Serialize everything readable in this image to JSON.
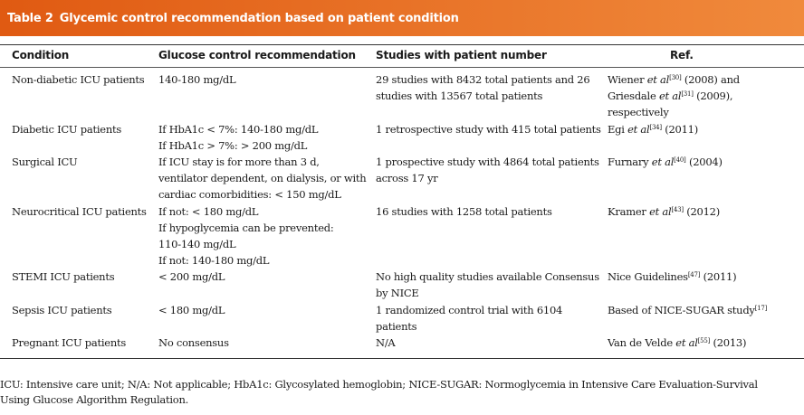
{
  "title": {
    "label": "Table 2",
    "text": "Glycemic control recommendation based on patient condition"
  },
  "columns": [
    "Condition",
    "Glucose control recommendation",
    "Studies with patient number",
    "Ref."
  ],
  "rows": [
    {
      "condition": [
        "Non-diabetic ICU patients"
      ],
      "recommendation": [
        "140-180 mg/dL"
      ],
      "studies": [
        "29 studies with 8432 total patients and 26",
        "studies with 13567 total patients"
      ],
      "ref": [
        {
          "pre": "Wiener ",
          "etal": "et al",
          "sup": "[30]",
          "post": " (2008) and"
        },
        {
          "pre": "Griesdale ",
          "etal": "et al",
          "sup": "[31]",
          "post": " (2009),"
        },
        {
          "pre": "respectively",
          "etal": "",
          "sup": "",
          "post": ""
        }
      ]
    },
    {
      "condition": [
        "Diabetic ICU patients"
      ],
      "recommendation": [
        "If HbA1c < 7%: 140-180 mg/dL",
        "If HbA1c > 7%: > 200 mg/dL"
      ],
      "studies": [
        "1 retrospective study with 415 total patients"
      ],
      "ref": [
        {
          "pre": "Egi ",
          "etal": "et al",
          "sup": "[34]",
          "post": " (2011)"
        }
      ]
    },
    {
      "condition": [
        "Surgical ICU"
      ],
      "recommendation": [
        "If ICU stay is for more than 3 d,",
        "ventilator dependent, on dialysis, or with",
        "cardiac comorbidities: < 150 mg/dL"
      ],
      "studies": [
        "1 prospective study with 4864 total patients",
        "across 17 yr"
      ],
      "ref": [
        {
          "pre": "Furnary ",
          "etal": "et al",
          "sup": "[40]",
          "post": " (2004)"
        }
      ]
    },
    {
      "condition": [
        "Neurocritical ICU patients"
      ],
      "recommendation": [
        "If not: < 180 mg/dL",
        "If hypoglycemia can be prevented:",
        "110-140 mg/dL",
        "If not: 140-180 mg/dL"
      ],
      "studies": [
        "16 studies with 1258 total patients"
      ],
      "ref": [
        {
          "pre": "Kramer ",
          "etal": "et al",
          "sup": "[43]",
          "post": " (2012)"
        }
      ]
    },
    {
      "condition": [
        "STEMI ICU patients"
      ],
      "recommendation": [
        "< 200 mg/dL"
      ],
      "studies": [
        "No high quality studies available Consensus",
        "by NICE"
      ],
      "ref": [
        {
          "pre": "Nice Guidelines",
          "etal": "",
          "sup": "[47]",
          "post": " (2011)"
        }
      ]
    },
    {
      "condition": [
        "Sepsis ICU patients"
      ],
      "recommendation": [
        "< 180 mg/dL"
      ],
      "studies": [
        "1 randomized control trial with 6104",
        "patients"
      ],
      "ref": [
        {
          "pre": "Based of NICE-SUGAR study",
          "etal": "",
          "sup": "[17]",
          "post": ""
        }
      ]
    },
    {
      "condition": [
        "Pregnant ICU patients"
      ],
      "recommendation": [
        "No consensus"
      ],
      "studies": [
        "N/A"
      ],
      "ref": [
        {
          "pre": "Van de Velde ",
          "etal": "et al",
          "sup": "[55]",
          "post": " (2013)"
        }
      ]
    }
  ],
  "footnote": [
    "ICU: Intensive care unit; N/A: Not applicable; HbA1c: Glycosylated hemoglobin; NICE-SUGAR: Normoglycemia in Intensive Care Evaluation-Survival",
    "Using Glucose Algorithm Regulation."
  ]
}
